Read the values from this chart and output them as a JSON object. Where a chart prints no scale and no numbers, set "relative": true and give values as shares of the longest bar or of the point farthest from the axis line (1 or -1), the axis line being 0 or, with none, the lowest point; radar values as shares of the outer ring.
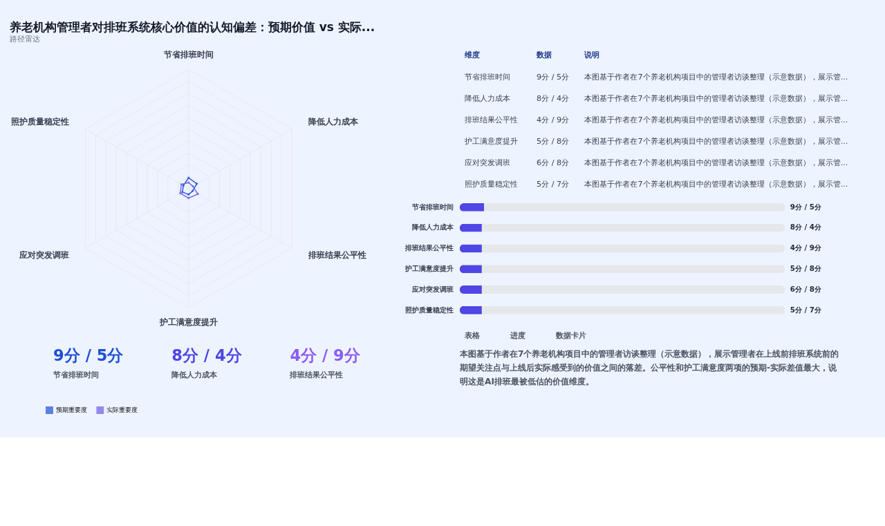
{
  "chart_data": [
    {
      "type": "radar",
      "title": "养老机构管理者对排班系统核心价值的认知偏差：预期价值 vs 实际...",
      "subtitle": "路径雷达",
      "categories": [
        "节省排班时间",
        "降低人力成本",
        "排班结果公平性",
        "护工满意度提升",
        "应对突发调班",
        "照护质量稳定性"
      ],
      "relative": true,
      "grid": true,
      "legend": "bottom",
      "marker": "circle",
      "series": [
        {
          "name": "预期重要度",
          "color": "#1d4ed8",
          "values": [
            0.09,
            0.08,
            0.04,
            0.05,
            0.06,
            0.05
          ]
        },
        {
          "name": "实际重要度",
          "color": "#6d5ce8",
          "values": [
            0.05,
            0.04,
            0.09,
            0.08,
            0.08,
            0.07
          ]
        }
      ]
    },
    {
      "type": "other",
      "categories": [
        "节省排班时间",
        "降低人力成本",
        "排班结果公平性",
        "护工满意度提升",
        "应对突发调班",
        "照护质量稳定性"
      ],
      "annotations": [
        "维度",
        "数据",
        "说明",
        "9分 / 5分",
        "本图基于作者在7个养老机构项目中的管理者访谈整理（示意数据），展示管...",
        "8分 / 4分",
        "本图基于作者在7个养老机构项目中的管理者访谈整理（示意数据），展示管...",
        "4分 / 9分",
        "本图基于作者在7个养老机构项目中的管理者访谈整理（示意数据），展示管...",
        "5分 / 8分",
        "本图基于作者在7个养老机构项目中的管理者访谈整理（示意数据），展示管...",
        "6分 / 8分",
        "本图基于作者在7个养老机构项目中的管理者访谈整理（示意数据），展示管...",
        "5分 / 7分",
        "本图基于作者在7个养老机构项目中的管理者访谈整理（示意数据），展示管..."
      ]
    },
    {
      "type": "bar",
      "orientation": "horizontal",
      "stacked": true,
      "relative": true,
      "categories": [
        "节省排班时间",
        "降低人力成本",
        "排班结果公平性",
        "护工满意度提升",
        "应对突发调班",
        "照护质量稳定性"
      ],
      "series": [
        {
          "color": "#4f46e5",
          "values": [
            0.075,
            0.068,
            0.068,
            0.068,
            0.068,
            0.068
          ]
        },
        {
          "color": "#e5e7eb",
          "values": [
            0.925,
            0.932,
            0.932,
            0.932,
            0.932,
            0.932
          ]
        }
      ],
      "value_labels": [
        "9分 / 5分",
        "8分 / 4分",
        "4分 / 9分",
        "5分 / 8分",
        "6分 / 8分",
        "5分 / 7分"
      ]
    },
    {
      "type": "other",
      "annotations": [
        "9分 / 5分",
        "节省排班时间",
        "8分 / 4分",
        "降低人力成本",
        "4分 / 9分",
        "排班结果公平性"
      ]
    },
    {
      "type": "other",
      "annotations": [
        "表格",
        "进度",
        "数据卡片",
        "本图基于作者在7个养老机构项目中的管理者访谈整理（示意数据），展示管理者在上线前排班系统前的期望关注点与上线后实际感受到的价值之间的落差。公平性和护工满意度两项的预期-实际差值最大，说明这是AI排班最被低估的价值维度。"
      ]
    }
  ]
}
